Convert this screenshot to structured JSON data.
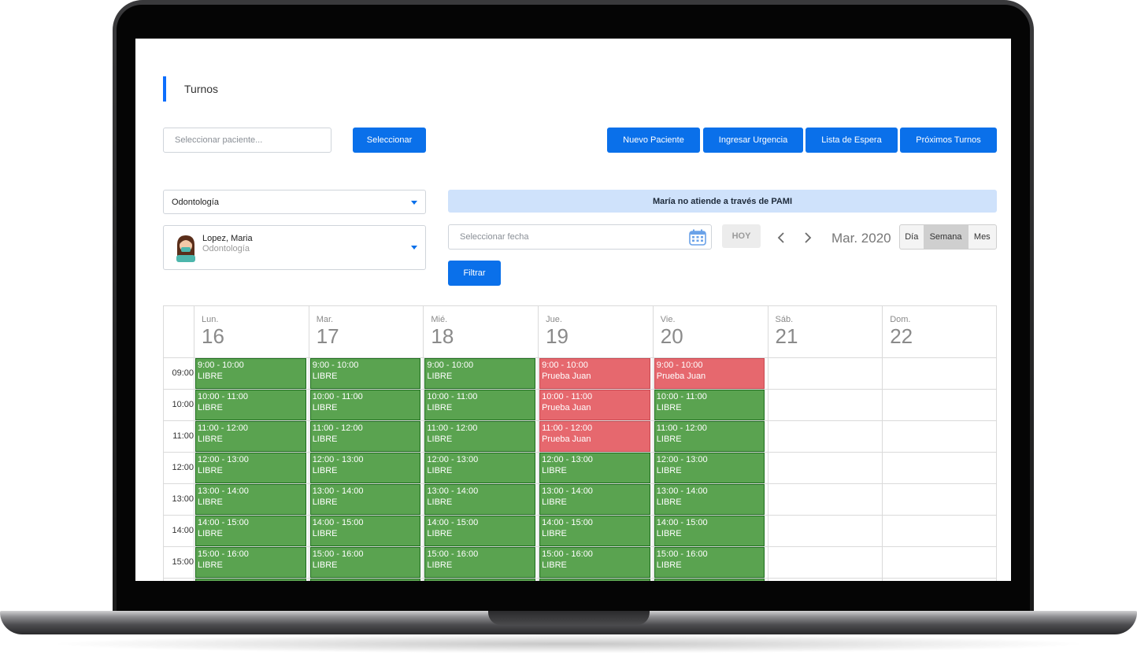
{
  "page": {
    "title": "Turnos"
  },
  "search": {
    "placeholder": "Seleccionar paciente...",
    "select_label": "Seleccionar"
  },
  "actions": [
    {
      "label": "Nuevo Paciente"
    },
    {
      "label": "Ingresar Urgencia"
    },
    {
      "label": "Lista de Espera"
    },
    {
      "label": "Próximos Turnos"
    }
  ],
  "specialty": {
    "value": "Odontología"
  },
  "professional": {
    "name": "Lopez, Maria",
    "specialty": "Odontología"
  },
  "banner": {
    "text": "María no atiende a través de PAMI"
  },
  "date_filter": {
    "placeholder": "Seleccionar fecha",
    "today_label": "HOY",
    "filter_label": "Filtrar",
    "month_label": "Mar. 2020"
  },
  "views": [
    {
      "label": "Día",
      "active": false
    },
    {
      "label": "Semana",
      "active": true
    },
    {
      "label": "Mes",
      "active": false
    }
  ],
  "calendar": {
    "days": [
      {
        "name": "Lun.",
        "num": "16"
      },
      {
        "name": "Mar.",
        "num": "17"
      },
      {
        "name": "Mié.",
        "num": "18"
      },
      {
        "name": "Jue.",
        "num": "19"
      },
      {
        "name": "Vie.",
        "num": "20"
      },
      {
        "name": "Sáb.",
        "num": "21"
      },
      {
        "name": "Dom.",
        "num": "22"
      }
    ],
    "hours": [
      "09:00",
      "10:00",
      "11:00",
      "12:00",
      "13:00",
      "14:00",
      "15:00"
    ],
    "slots": [
      {
        "day": 0,
        "hour": 0,
        "time": "9:00 - 10:00",
        "status": "LIBRE",
        "busy": false
      },
      {
        "day": 0,
        "hour": 1,
        "time": "10:00 - 11:00",
        "status": "LIBRE",
        "busy": false
      },
      {
        "day": 0,
        "hour": 2,
        "time": "11:00 - 12:00",
        "status": "LIBRE",
        "busy": false
      },
      {
        "day": 0,
        "hour": 3,
        "time": "12:00 - 13:00",
        "status": "LIBRE",
        "busy": false
      },
      {
        "day": 0,
        "hour": 4,
        "time": "13:00 - 14:00",
        "status": "LIBRE",
        "busy": false
      },
      {
        "day": 0,
        "hour": 5,
        "time": "14:00 - 15:00",
        "status": "LIBRE",
        "busy": false
      },
      {
        "day": 0,
        "hour": 6,
        "time": "15:00 - 16:00",
        "status": "LIBRE",
        "busy": false
      },
      {
        "day": 1,
        "hour": 0,
        "time": "9:00 - 10:00",
        "status": "LIBRE",
        "busy": false
      },
      {
        "day": 1,
        "hour": 1,
        "time": "10:00 - 11:00",
        "status": "LIBRE",
        "busy": false
      },
      {
        "day": 1,
        "hour": 2,
        "time": "11:00 - 12:00",
        "status": "LIBRE",
        "busy": false
      },
      {
        "day": 1,
        "hour": 3,
        "time": "12:00 - 13:00",
        "status": "LIBRE",
        "busy": false
      },
      {
        "day": 1,
        "hour": 4,
        "time": "13:00 - 14:00",
        "status": "LIBRE",
        "busy": false
      },
      {
        "day": 1,
        "hour": 5,
        "time": "14:00 - 15:00",
        "status": "LIBRE",
        "busy": false
      },
      {
        "day": 1,
        "hour": 6,
        "time": "15:00 - 16:00",
        "status": "LIBRE",
        "busy": false
      },
      {
        "day": 2,
        "hour": 0,
        "time": "9:00 - 10:00",
        "status": "LIBRE",
        "busy": false
      },
      {
        "day": 2,
        "hour": 1,
        "time": "10:00 - 11:00",
        "status": "LIBRE",
        "busy": false
      },
      {
        "day": 2,
        "hour": 2,
        "time": "11:00 - 12:00",
        "status": "LIBRE",
        "busy": false
      },
      {
        "day": 2,
        "hour": 3,
        "time": "12:00 - 13:00",
        "status": "LIBRE",
        "busy": false
      },
      {
        "day": 2,
        "hour": 4,
        "time": "13:00 - 14:00",
        "status": "LIBRE",
        "busy": false
      },
      {
        "day": 2,
        "hour": 5,
        "time": "14:00 - 15:00",
        "status": "LIBRE",
        "busy": false
      },
      {
        "day": 2,
        "hour": 6,
        "time": "15:00 - 16:00",
        "status": "LIBRE",
        "busy": false
      },
      {
        "day": 3,
        "hour": 0,
        "time": "9:00 - 10:00",
        "status": "Prueba Juan",
        "busy": true
      },
      {
        "day": 3,
        "hour": 1,
        "time": "10:00 - 11:00",
        "status": "Prueba Juan",
        "busy": true
      },
      {
        "day": 3,
        "hour": 2,
        "time": "11:00 - 12:00",
        "status": "Prueba Juan",
        "busy": true
      },
      {
        "day": 3,
        "hour": 3,
        "time": "12:00 - 13:00",
        "status": "LIBRE",
        "busy": false
      },
      {
        "day": 3,
        "hour": 4,
        "time": "13:00 - 14:00",
        "status": "LIBRE",
        "busy": false
      },
      {
        "day": 3,
        "hour": 5,
        "time": "14:00 - 15:00",
        "status": "LIBRE",
        "busy": false
      },
      {
        "day": 3,
        "hour": 6,
        "time": "15:00 - 16:00",
        "status": "LIBRE",
        "busy": false
      },
      {
        "day": 4,
        "hour": 0,
        "time": "9:00 - 10:00",
        "status": "Prueba Juan",
        "busy": true
      },
      {
        "day": 4,
        "hour": 1,
        "time": "10:00 - 11:00",
        "status": "LIBRE",
        "busy": false
      },
      {
        "day": 4,
        "hour": 2,
        "time": "11:00 - 12:00",
        "status": "LIBRE",
        "busy": false
      },
      {
        "day": 4,
        "hour": 3,
        "time": "12:00 - 13:00",
        "status": "LIBRE",
        "busy": false
      },
      {
        "day": 4,
        "hour": 4,
        "time": "13:00 - 14:00",
        "status": "LIBRE",
        "busy": false
      },
      {
        "day": 4,
        "hour": 5,
        "time": "14:00 - 15:00",
        "status": "LIBRE",
        "busy": false
      },
      {
        "day": 4,
        "hour": 6,
        "time": "15:00 - 16:00",
        "status": "LIBRE",
        "busy": false
      }
    ]
  },
  "colors": {
    "accent": "#0a70ea",
    "libre": "#5aa350",
    "busy": "#e6686e",
    "banner": "#cfe2fb"
  },
  "icons": {
    "calendar": "calendar-icon",
    "prev": "chevron-left-icon",
    "next": "chevron-right-icon",
    "caret": "caret-down-icon"
  }
}
